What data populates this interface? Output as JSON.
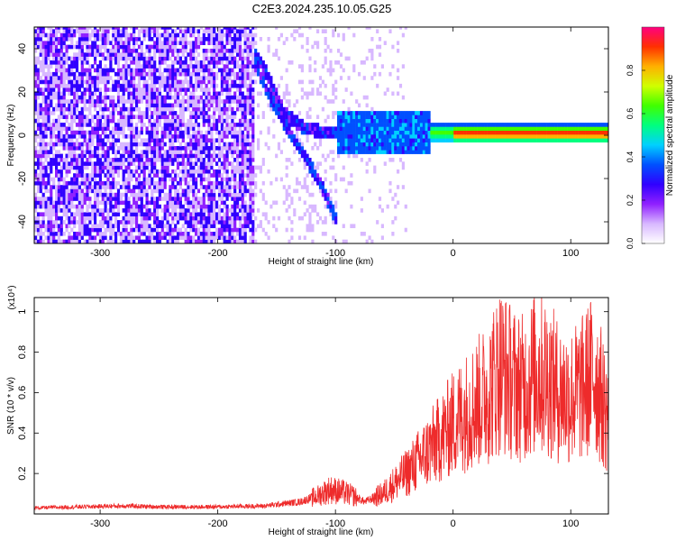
{
  "figure": {
    "title": "C2E3.2024.235.10.05.G25"
  },
  "chart_data": [
    {
      "type": "heatmap",
      "title": "C2E3.2024.235.10.05.G25",
      "xlabel": "Height of straight line (km)",
      "ylabel": "Frequency (Hz)",
      "xlim": [
        -356,
        132
      ],
      "ylim": [
        -50,
        50
      ],
      "xticks": [
        -300,
        -200,
        -100,
        0,
        100
      ],
      "yticks": [
        -40,
        -20,
        0,
        20,
        40
      ],
      "colorbar": {
        "label": "Normalized spectral amplitude",
        "range": [
          0,
          1
        ],
        "ticks": [
          "0.0",
          "0.2",
          "0.4",
          "0.6",
          "0.8"
        ],
        "colors": [
          "#ffffff",
          "#d8b8ff",
          "#9020ff",
          "#3000ff",
          "#0050ff",
          "#00d0ff",
          "#00ff80",
          "#40ff00",
          "#d0ff00",
          "#ffb000",
          "#ff3000",
          "#ff0080"
        ]
      },
      "features": [
        {
          "name": "noise",
          "x_range": [
            -356,
            -170
          ],
          "freq_range": [
            -50,
            50
          ]
        },
        {
          "name": "dispersed-arm",
          "x": [
            -175,
            -160,
            -145,
            -130,
            -115,
            -100
          ],
          "freq_upper": [
            42,
            28,
            10,
            3,
            1,
            0
          ],
          "freq_lower": [
            40,
            20,
            5,
            -8,
            -22,
            -40
          ]
        },
        {
          "name": "narrow-band",
          "x_range": [
            -110,
            132
          ],
          "center_freq": 0,
          "peak_amplitude": 1.0
        }
      ]
    },
    {
      "type": "line",
      "xlabel": "Height of straight line (km)",
      "ylabel": "SNR (10 * v/v)",
      "scale_note": "(x10⁴)",
      "xlim": [
        -356,
        132
      ],
      "ylim": [
        0,
        1.07
      ],
      "xticks": [
        -300,
        -200,
        -100,
        0,
        100
      ],
      "yticks": [
        0.2,
        0.4,
        0.6,
        0.8,
        1.0
      ],
      "series": [
        {
          "color": "#ee2b2b",
          "x": [
            -356,
            -320,
            -280,
            -250,
            -200,
            -160,
            -130,
            -115,
            -105,
            -95,
            -85,
            -75,
            -60,
            -50,
            -40,
            -30,
            -20,
            -10,
            0,
            10,
            20,
            30,
            40,
            50,
            60,
            70,
            80,
            90,
            100,
            110,
            120,
            130
          ],
          "y": [
            0.03,
            0.035,
            0.04,
            0.035,
            0.035,
            0.04,
            0.06,
            0.09,
            0.12,
            0.11,
            0.09,
            0.06,
            0.1,
            0.15,
            0.2,
            0.26,
            0.32,
            0.38,
            0.45,
            0.5,
            0.55,
            0.6,
            0.72,
            0.65,
            0.62,
            0.7,
            0.68,
            0.6,
            0.58,
            0.62,
            0.7,
            0.5
          ]
        }
      ]
    }
  ]
}
